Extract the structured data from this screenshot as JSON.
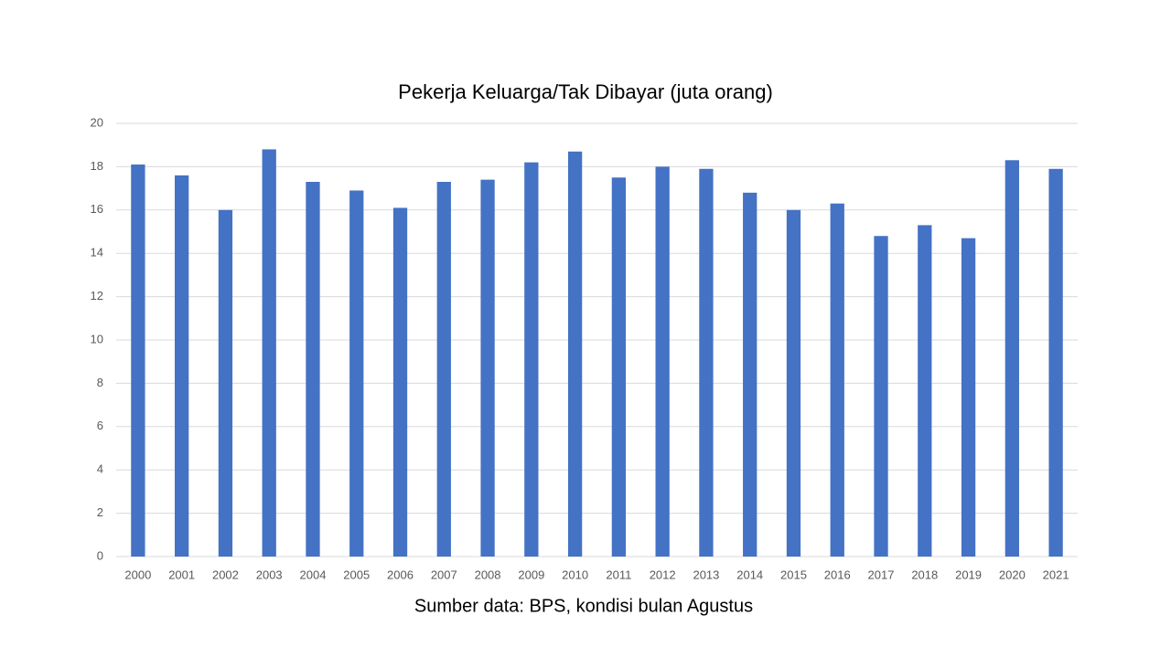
{
  "chart_data": {
    "type": "bar",
    "title": "Pekerja  Keluarga/Tak Dibayar (juta orang)",
    "source": "Sumber data: BPS, kondisi bulan Agustus",
    "categories": [
      "2000",
      "2001",
      "2002",
      "2003",
      "2004",
      "2005",
      "2006",
      "2007",
      "2008",
      "2009",
      "2010",
      "2011",
      "2012",
      "2013",
      "2014",
      "2015",
      "2016",
      "2017",
      "2018",
      "2019",
      "2020",
      "2021"
    ],
    "values": [
      18.1,
      17.6,
      16.0,
      18.8,
      17.3,
      16.9,
      16.1,
      17.3,
      17.4,
      18.2,
      18.7,
      17.5,
      18.0,
      17.9,
      16.8,
      16.0,
      16.3,
      14.8,
      15.3,
      14.7,
      18.3,
      17.9
    ],
    "color": "#4472c4",
    "ylim": [
      0,
      20
    ],
    "yticks": [
      0,
      2,
      4,
      6,
      8,
      10,
      12,
      14,
      16,
      18,
      20
    ],
    "grid": true
  }
}
